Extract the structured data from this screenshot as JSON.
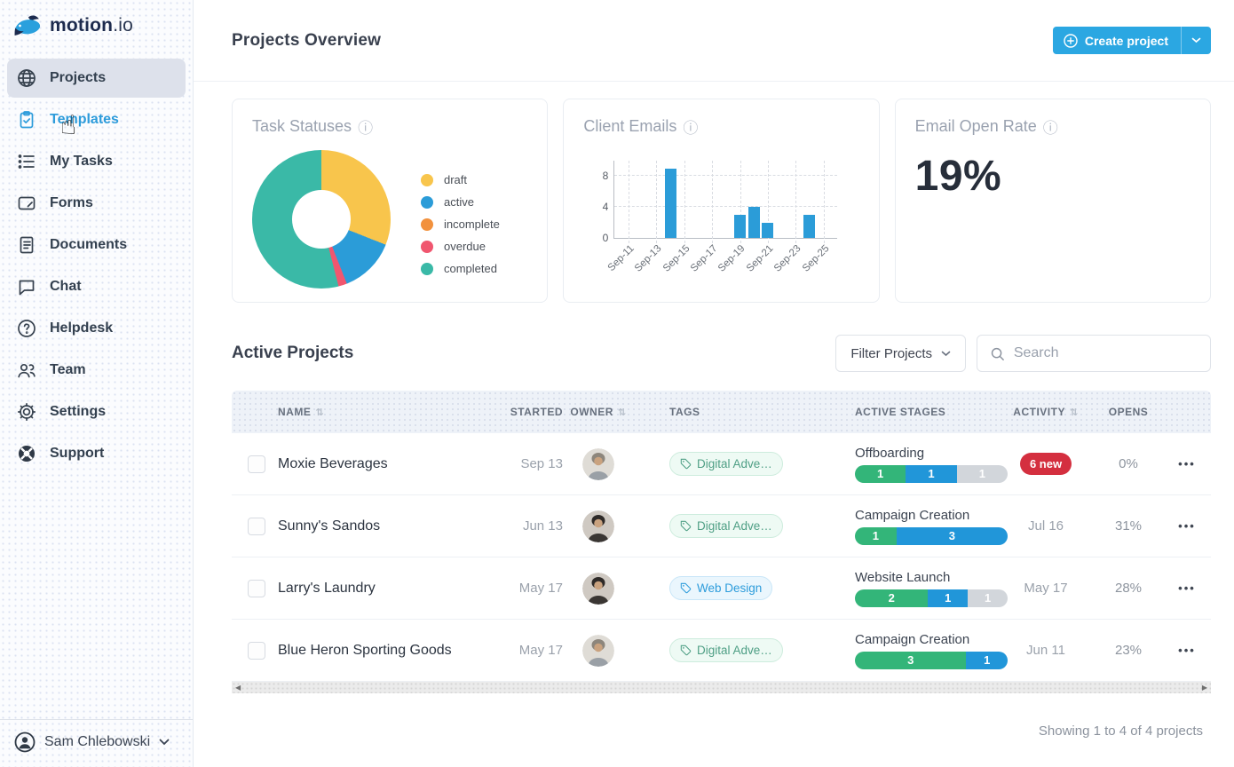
{
  "brand": {
    "name": "motion",
    "tld": ".io"
  },
  "sidebar": {
    "items": [
      {
        "label": "Projects",
        "icon": "globe-icon",
        "active": true
      },
      {
        "label": "Templates",
        "icon": "clipboard-icon",
        "highlight": true
      },
      {
        "label": "My Tasks",
        "icon": "task-list-icon"
      },
      {
        "label": "Forms",
        "icon": "form-icon"
      },
      {
        "label": "Documents",
        "icon": "document-icon"
      },
      {
        "label": "Chat",
        "icon": "chat-icon"
      },
      {
        "label": "Helpdesk",
        "icon": "help-circle-icon"
      },
      {
        "label": "Team",
        "icon": "team-icon"
      },
      {
        "label": "Settings",
        "icon": "gear-icon"
      },
      {
        "label": "Support",
        "icon": "life-ring-icon"
      }
    ],
    "user": {
      "name": "Sam Chlebowski"
    }
  },
  "header": {
    "title": "Projects Overview",
    "create_button": "Create project"
  },
  "cards": {
    "task_statuses": {
      "title": "Task Statuses"
    },
    "client_emails": {
      "title": "Client Emails"
    },
    "email_open_rate": {
      "title": "Email Open Rate",
      "value": "19%"
    }
  },
  "chart_data": [
    {
      "type": "pie",
      "title": "Task Statuses",
      "donut": true,
      "labels": [
        "draft",
        "active",
        "incomplete",
        "overdue",
        "completed"
      ],
      "values": [
        31,
        13,
        0,
        2,
        54
      ],
      "colors": [
        "#f8c54c",
        "#2b9cd8",
        "#f2913d",
        "#f0566f",
        "#3ab9a7"
      ],
      "legend_position": "right"
    },
    {
      "type": "bar",
      "title": "Client Emails",
      "x_ticks": [
        "Sep-11",
        "Sep-13",
        "Sep-15",
        "Sep-17",
        "Sep-19",
        "Sep-21",
        "Sep-23",
        "Sep-25"
      ],
      "points": [
        {
          "x": "Sep-14",
          "y": 9
        },
        {
          "x": "Sep-19",
          "y": 3
        },
        {
          "x": "Sep-20",
          "y": 4
        },
        {
          "x": "Sep-21",
          "y": 2
        },
        {
          "x": "Sep-24",
          "y": 3
        }
      ],
      "y_ticks": [
        0,
        4,
        8
      ],
      "ylim": [
        0,
        10
      ],
      "bar_color": "#2b9cd8",
      "grid": "dashed"
    }
  ],
  "active_projects": {
    "title": "Active Projects",
    "filter_button": "Filter Projects",
    "search_placeholder": "Search",
    "columns": [
      "NAME",
      "STARTED",
      "OWNER",
      "TAGS",
      "ACTIVE STAGES",
      "ACTIVITY",
      "OPENS"
    ],
    "rows": [
      {
        "name": "Moxie Beverages",
        "started": "Sep 13",
        "owner_avatar": "man-light",
        "tag": {
          "label": "Digital Adve…",
          "color": "green"
        },
        "stage": {
          "label": "Offboarding",
          "segments": [
            {
              "value": 1,
              "color": "green"
            },
            {
              "value": 1,
              "color": "blue"
            },
            {
              "value": 1,
              "color": "gray"
            }
          ]
        },
        "activity": {
          "type": "badge",
          "text": "6 new"
        },
        "opens": "0%"
      },
      {
        "name": "Sunny's Sandos",
        "started": "Jun 13",
        "owner_avatar": "woman-dark",
        "tag": {
          "label": "Digital Adve…",
          "color": "green"
        },
        "stage": {
          "label": "Campaign Creation",
          "segments": [
            {
              "value": 1,
              "color": "green"
            },
            {
              "value": 3,
              "color": "blue"
            }
          ]
        },
        "activity": {
          "type": "date",
          "text": "Jul 16"
        },
        "opens": "31%"
      },
      {
        "name": "Larry's Laundry",
        "started": "May 17",
        "owner_avatar": "woman-dark",
        "tag": {
          "label": "Web Design",
          "color": "blue"
        },
        "stage": {
          "label": "Website Launch",
          "segments": [
            {
              "value": 2,
              "color": "green"
            },
            {
              "value": 1,
              "color": "blue"
            },
            {
              "value": 1,
              "color": "gray"
            }
          ]
        },
        "activity": {
          "type": "date",
          "text": "May 17"
        },
        "opens": "28%"
      },
      {
        "name": "Blue Heron Sporting Goods",
        "started": "May 17",
        "owner_avatar": "man-light",
        "tag": {
          "label": "Digital Adve…",
          "color": "green"
        },
        "stage": {
          "label": "Campaign Creation",
          "segments": [
            {
              "value": 3,
              "color": "green"
            },
            {
              "value": 1,
              "color": "blue"
            }
          ]
        },
        "activity": {
          "type": "date",
          "text": "Jun 11"
        },
        "opens": "23%"
      }
    ],
    "footer": "Showing 1 to 4 of 4 projects"
  },
  "icons": {
    "info": "ⓘ",
    "sort": "⇅",
    "menu_ellipsis": "•••",
    "scroll_left": "◀",
    "scroll_right": "▶",
    "pointer": "☝"
  },
  "colors": {
    "accent_blue": "#2ba7e2",
    "badge_red": "#d42f3f",
    "seg_green": "#33b579",
    "seg_blue": "#2196d9",
    "seg_gray": "#d2d6db"
  }
}
